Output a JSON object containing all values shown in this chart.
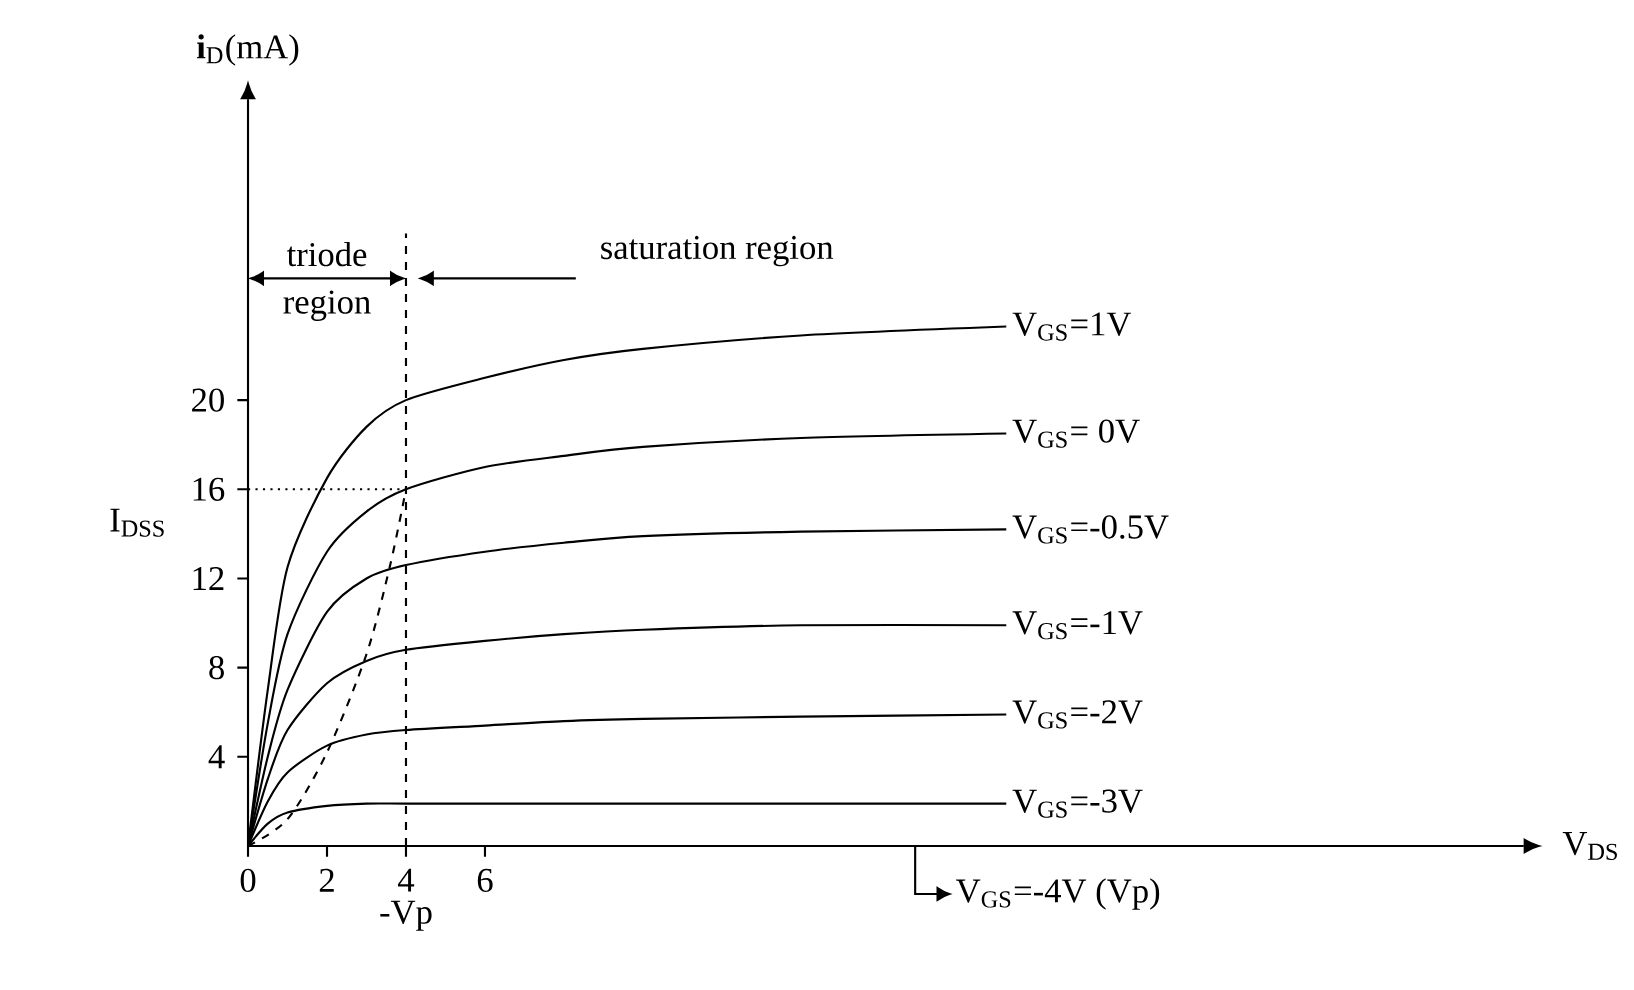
{
  "chart_data": {
    "type": "line",
    "xlabel": "V$_{DS}$",
    "ylabel": "**i**$_{D}$(mA)",
    "x": [
      0,
      0.5,
      1,
      2,
      3,
      4,
      6,
      8,
      10,
      14,
      19.2
    ],
    "series": [
      {
        "name": "V$_{GS}$=1V",
        "color": "#000000",
        "values": [
          0,
          7,
          12.5,
          16.5,
          18.8,
          20,
          21,
          21.8,
          22.3,
          22.9,
          23.3
        ]
      },
      {
        "name": "V$_{GS}$= 0V",
        "color": "#000000",
        "values": [
          0,
          5.5,
          9.5,
          13.2,
          15,
          16,
          17,
          17.5,
          17.9,
          18.3,
          18.5
        ]
      },
      {
        "name": "V$_{GS}$=-0.5V",
        "color": "#000000",
        "values": [
          0,
          4,
          7,
          10.5,
          12,
          12.6,
          13.2,
          13.6,
          13.9,
          14.1,
          14.2
        ]
      },
      {
        "name": "V$_{GS}$=-1V",
        "color": "#000000",
        "values": [
          0,
          3,
          5.2,
          7.3,
          8.3,
          8.8,
          9.2,
          9.5,
          9.7,
          9.9,
          9.9
        ]
      },
      {
        "name": "V$_{GS}$=-2V",
        "color": "#000000",
        "values": [
          0,
          2,
          3.3,
          4.5,
          5,
          5.2,
          5.4,
          5.6,
          5.7,
          5.8,
          5.9
        ]
      },
      {
        "name": "V$_{GS}$=-3V",
        "color": "#000000",
        "values": [
          0,
          1,
          1.5,
          1.8,
          1.9,
          1.9,
          1.9,
          1.9,
          1.9,
          1.9,
          1.9
        ]
      },
      {
        "color": "#000000",
        "line_style": "dashed",
        "x": [
          0,
          1,
          2,
          3,
          3.6,
          4
        ],
        "values": [
          0,
          1.2,
          4.2,
          8.6,
          12.6,
          16
        ]
      }
    ],
    "xlim": [
      0,
      32.3
    ],
    "ylim": [
      0,
      33.5
    ],
    "xticks": [
      0,
      2,
      4,
      6
    ],
    "yticks": [
      4,
      8,
      12,
      16,
      20
    ],
    "ref_lines": [
      {
        "axis": "x",
        "value": 4,
        "label": "-Vp",
        "line_style": "dashed"
      },
      {
        "axis": "y",
        "value": 16,
        "label": "I$_{DSS}$",
        "line_style": "dotted"
      }
    ],
    "annotations": [
      "triode",
      "region",
      "saturation region",
      "V$_{GS}$=-4V (Vp)"
    ],
    "grid": false,
    "marker": "none",
    "line_style": "solid"
  }
}
